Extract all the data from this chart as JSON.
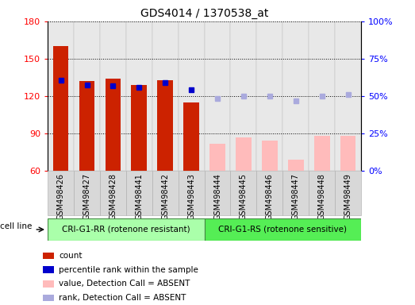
{
  "title": "GDS4014 / 1370538_at",
  "samples": [
    "GSM498426",
    "GSM498427",
    "GSM498428",
    "GSM498441",
    "GSM498442",
    "GSM498443",
    "GSM498444",
    "GSM498445",
    "GSM498446",
    "GSM498447",
    "GSM498448",
    "GSM498449"
  ],
  "group1_count": 6,
  "group2_count": 6,
  "group1_label": "CRI-G1-RR (rotenone resistant)",
  "group2_label": "CRI-G1-RS (rotenone sensitive)",
  "cell_line_label": "cell line",
  "count_values": [
    160,
    132,
    134,
    129,
    133,
    115,
    null,
    null,
    null,
    null,
    null,
    null
  ],
  "rank_values": [
    133,
    129,
    128,
    127,
    131,
    125,
    null,
    null,
    null,
    null,
    null,
    null
  ],
  "absent_value": [
    null,
    null,
    null,
    null,
    null,
    null,
    82,
    87,
    84,
    69,
    88,
    88
  ],
  "absent_rank": [
    null,
    null,
    null,
    null,
    null,
    null,
    118,
    120,
    120,
    116,
    120,
    121
  ],
  "ylim_left": [
    60,
    180
  ],
  "ylim_right": [
    0,
    100
  ],
  "yticks_left": [
    60,
    90,
    120,
    150,
    180
  ],
  "yticks_right": [
    0,
    25,
    50,
    75,
    100
  ],
  "ytick_labels_right": [
    "0%",
    "25%",
    "50%",
    "75%",
    "100%"
  ],
  "bar_width": 0.6,
  "count_color": "#cc2200",
  "rank_color": "#0000cc",
  "absent_value_color": "#ffbbbb",
  "absent_rank_color": "#aaaadd",
  "group1_bg": "#aaffaa",
  "group2_bg": "#55ee55",
  "legend_items": [
    "count",
    "percentile rank within the sample",
    "value, Detection Call = ABSENT",
    "rank, Detection Call = ABSENT"
  ],
  "legend_colors": [
    "#cc2200",
    "#0000cc",
    "#ffbbbb",
    "#aaaadd"
  ]
}
